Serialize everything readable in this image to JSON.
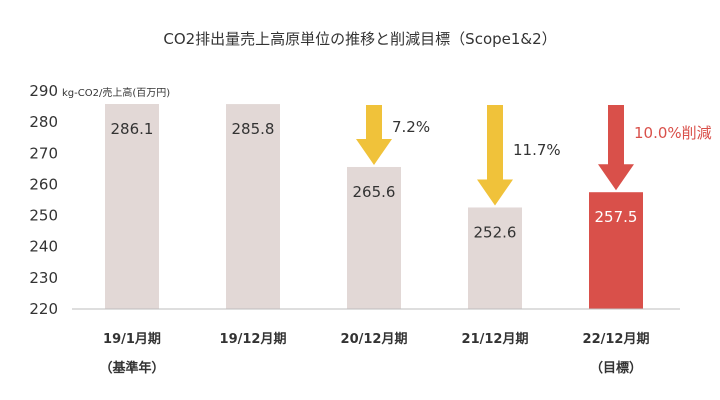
{
  "chart_data": {
    "type": "bar",
    "title": "CO2排出量売上高原単位の推移と削減目標（Scope1&2）",
    "unit_label": "kg-CO2/売上高(百万円)",
    "ylim": [
      220,
      290
    ],
    "yticks": [
      220,
      230,
      240,
      250,
      260,
      270,
      280,
      290
    ],
    "grid": false,
    "categories": [
      "19/1月期",
      "19/12月期",
      "20/12月期",
      "21/12月期",
      "22/12月期"
    ],
    "sub_labels": [
      "（基準年）",
      "",
      "",
      "",
      "（目標）"
    ],
    "values": [
      286.1,
      285.8,
      265.6,
      252.6,
      257.5
    ],
    "value_labels": [
      "286.1",
      "285.8",
      "265.6",
      "252.6",
      "257.5"
    ],
    "reductions": [
      {
        "category": "20/12月期",
        "label": "7.2%",
        "color": "#f0c23a"
      },
      {
        "category": "21/12月期",
        "label": "11.7%",
        "color": "#f0c23a"
      },
      {
        "category": "22/12月期",
        "label": "10.0%削減",
        "color": "#d9504a"
      }
    ],
    "colors": {
      "bar": "#e2d8d6",
      "target_bar": "#d9504a",
      "arrow_actual": "#f0c23a",
      "arrow_target": "#d9504a",
      "text": "#333333",
      "target_text": "#d9504a"
    }
  }
}
